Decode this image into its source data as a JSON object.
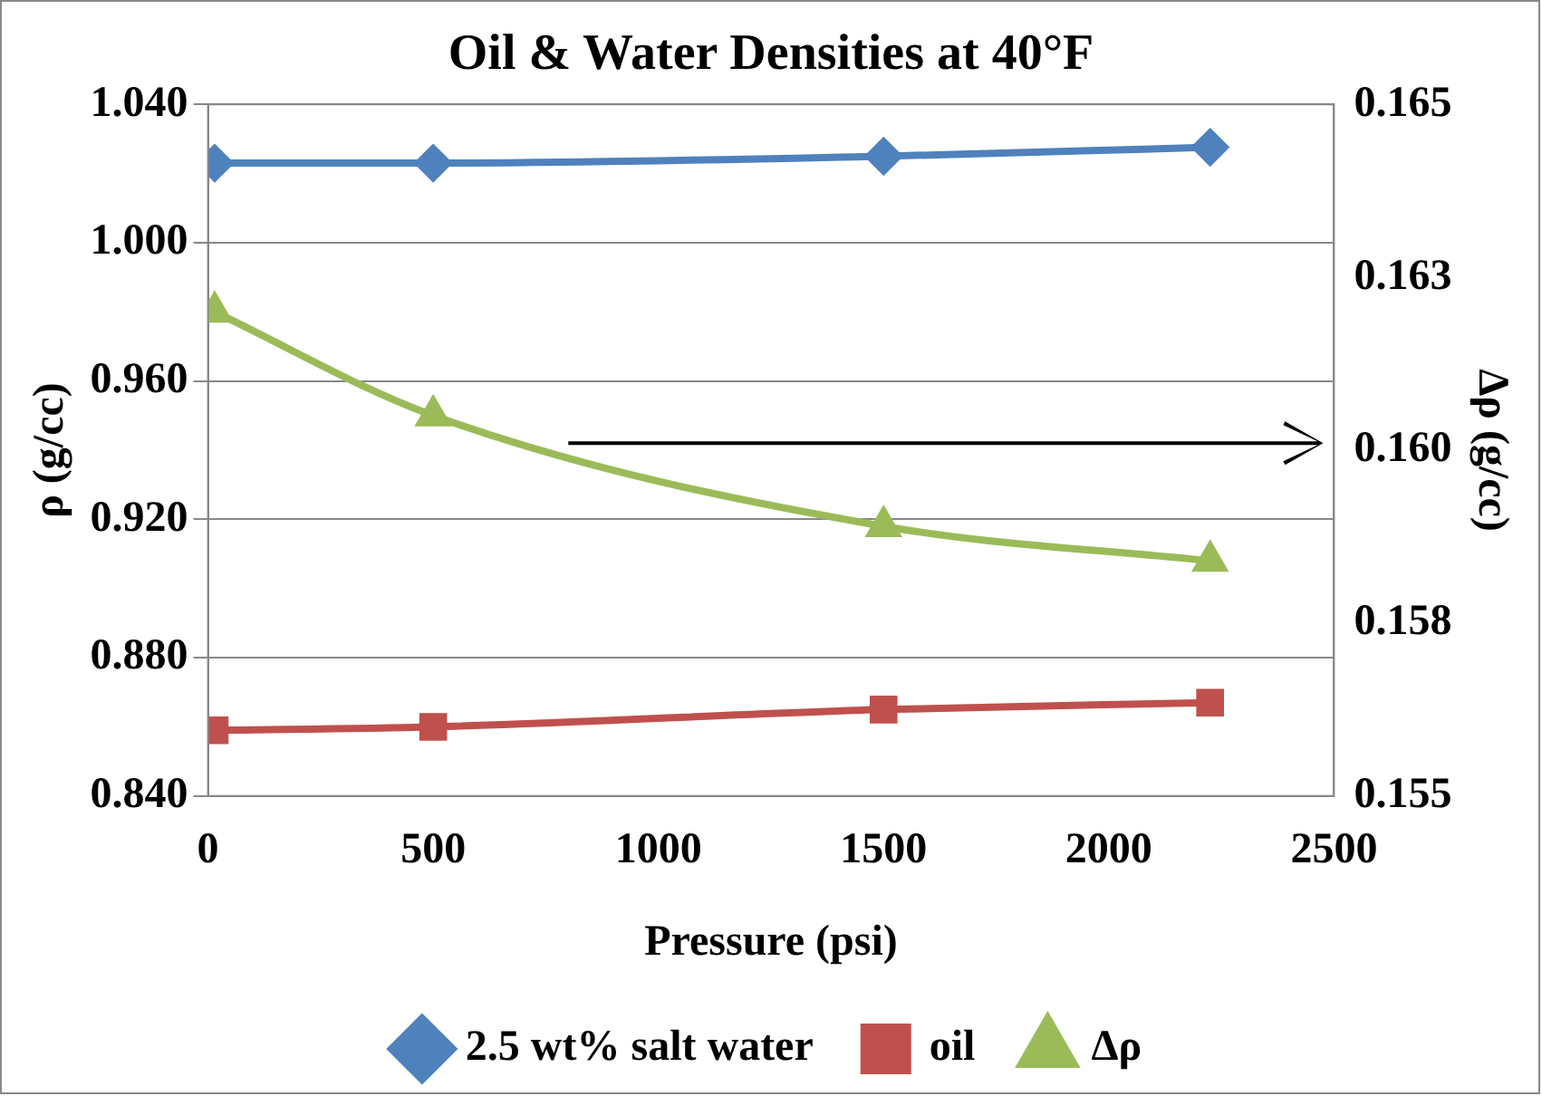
{
  "chart_data": {
    "type": "line",
    "title": "Oil & Water Densities at 40°F",
    "xlabel": "Pressure (psi)",
    "ylabel": "ρ (g/cc)",
    "y2label": "Δρ (g/cc)",
    "x": [
      14.7,
      500,
      1500,
      2225
    ],
    "series": [
      {
        "name": "2.5 wt% salt water",
        "color": "#4f81bd",
        "marker": "diamond",
        "values": [
          1.023,
          1.023,
          1.025,
          1.0276
        ]
      },
      {
        "name": "oil",
        "color": "#c0504d",
        "marker": "square",
        "values": [
          0.859,
          0.86,
          0.865,
          0.867
        ]
      },
      {
        "name": "Δρ",
        "color": "#9bbb59",
        "marker": "triangle",
        "axis": "y2",
        "values": [
          0.162,
          0.1605,
          0.1589,
          0.1584
        ]
      }
    ],
    "xlim": [
      0,
      2500
    ],
    "xticks": [
      0,
      500,
      1000,
      1500,
      2000,
      2500
    ],
    "ylim": [
      0.84,
      1.04
    ],
    "yticks": [
      {
        "value": 0.84,
        "label": "0.840"
      },
      {
        "value": 0.88,
        "label": "0.880"
      },
      {
        "value": 0.92,
        "label": "0.920"
      },
      {
        "value": 0.96,
        "label": "0.960"
      },
      {
        "value": 1.0,
        "label": "1.000"
      },
      {
        "value": 1.04,
        "label": "1.040"
      }
    ],
    "y2lim": [
      0.155,
      0.165
    ],
    "y2ticks": [
      {
        "value": 0.155,
        "label": "0.155"
      },
      {
        "value": 0.1575,
        "label": "0.158"
      },
      {
        "value": 0.16,
        "label": "0.160"
      },
      {
        "value": 0.1625,
        "label": "0.163"
      },
      {
        "value": 0.165,
        "label": "0.165"
      }
    ],
    "grid": "y",
    "legend": "bottom",
    "line_style": "solid"
  }
}
